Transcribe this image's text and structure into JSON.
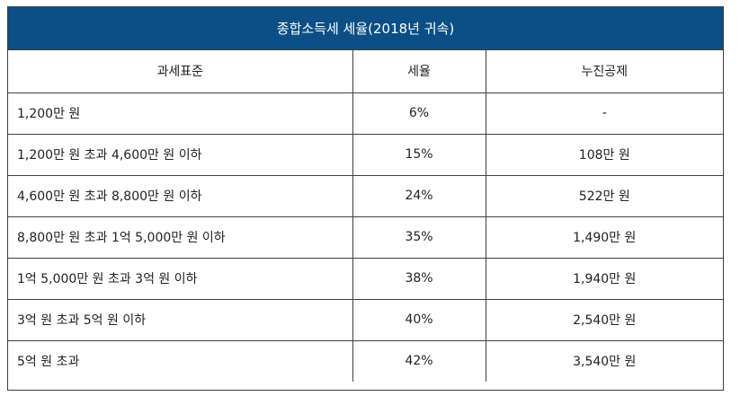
{
  "title": "종합소득세 세율(2018년 귀속)",
  "headers": [
    "과세표준",
    "세율",
    "누진공제"
  ],
  "rows": [
    [
      "1,200만 원",
      "6%",
      "-"
    ],
    [
      "1,200만 원 초과 4,600만 원 이하",
      "15%",
      "108만 원"
    ],
    [
      "4,600만 원 초과 8,800만 원 이하",
      "24%",
      "522만 원"
    ],
    [
      "8,800만 원 초과 1억 5,000만 원 이하",
      "35%",
      "1,490만 원"
    ],
    [
      "1억 5,000만 원 초과 3억 원 이하",
      "38%",
      "1,940만 원"
    ],
    [
      "3억 원 초과 5억 원 이하",
      "40%",
      "2,540만 원"
    ],
    [
      "5억 원 초과",
      "42%",
      "3,540만 원"
    ]
  ],
  "colors": {
    "header_background": "#0b4f86",
    "header_text": "#ffffff",
    "border": "#3f3f3f",
    "text": "#222222"
  }
}
